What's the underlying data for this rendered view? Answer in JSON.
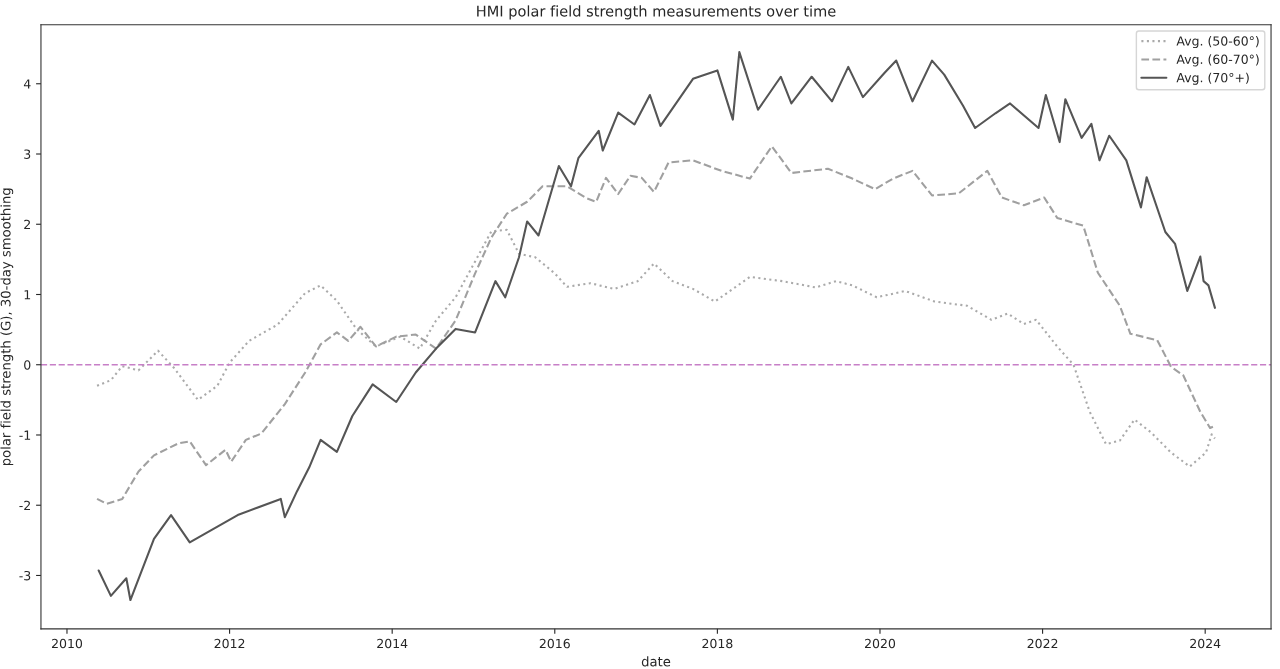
{
  "chart_data": {
    "type": "line",
    "title": "HMI polar field strength measurements over time",
    "xlabel": "date",
    "ylabel": "polar field strength (G), 30-day smoothing",
    "xlim": [
      2009.68,
      2024.81
    ],
    "xticks": [
      2010,
      2012,
      2014,
      2016,
      2018,
      2020,
      2022,
      2024
    ],
    "ylim": [
      -3.76,
      4.84
    ],
    "yticks": [
      -3,
      -2,
      -1,
      0,
      1,
      2,
      3,
      4
    ],
    "grid": false,
    "legend": "top right",
    "marker": "none",
    "ref_lines": [
      {
        "axis": "y",
        "value": 0,
        "color": "#c77fc7",
        "line_style": "dashed"
      }
    ],
    "series": [
      {
        "name": "Avg. (50-60°)",
        "color": "#aaaaaa",
        "line_style": "dotted",
        "x": [
          2010.37,
          2010.54,
          2010.68,
          2010.88,
          2011.12,
          2011.32,
          2011.61,
          2011.85,
          2012.0,
          2012.24,
          2012.59,
          2012.93,
          2013.12,
          2013.32,
          2013.56,
          2013.8,
          2014.1,
          2014.34,
          2014.54,
          2014.78,
          2015.02,
          2015.22,
          2015.41,
          2015.56,
          2015.76,
          2016.0,
          2016.15,
          2016.44,
          2016.73,
          2017.02,
          2017.22,
          2017.45,
          2017.7,
          2017.97,
          2018.4,
          2018.8,
          2019.21,
          2019.46,
          2019.66,
          2019.96,
          2020.31,
          2020.67,
          2021.07,
          2021.37,
          2021.57,
          2021.77,
          2021.92,
          2022.18,
          2022.38,
          2022.58,
          2022.78,
          2022.95,
          2023.13,
          2023.33,
          2023.58,
          2023.81,
          2024.01,
          2024.08,
          2024.12
        ],
        "values": [
          -0.3,
          -0.22,
          -0.02,
          -0.08,
          0.2,
          -0.05,
          -0.5,
          -0.3,
          0.03,
          0.34,
          0.57,
          1.02,
          1.13,
          0.91,
          0.51,
          0.26,
          0.4,
          0.23,
          0.63,
          0.96,
          1.47,
          1.9,
          1.92,
          1.58,
          1.53,
          1.3,
          1.11,
          1.16,
          1.08,
          1.19,
          1.44,
          1.19,
          1.08,
          0.9,
          1.25,
          1.19,
          1.1,
          1.19,
          1.13,
          0.96,
          1.05,
          0.9,
          0.84,
          0.64,
          0.73,
          0.58,
          0.64,
          0.26,
          0.0,
          -0.67,
          -1.13,
          -1.08,
          -0.78,
          -0.96,
          -1.25,
          -1.45,
          -1.25,
          -0.99,
          -1.05
        ]
      },
      {
        "name": "Avg. (60-70°)",
        "color": "#a0a0a0",
        "line_style": "dashed",
        "x": [
          2010.37,
          2010.49,
          2010.68,
          2010.88,
          2011.07,
          2011.37,
          2011.51,
          2011.71,
          2011.95,
          2012.02,
          2012.2,
          2012.39,
          2012.68,
          2012.93,
          2013.12,
          2013.32,
          2013.46,
          2013.61,
          2013.8,
          2014.05,
          2014.29,
          2014.54,
          2014.78,
          2015.02,
          2015.22,
          2015.41,
          2015.66,
          2015.85,
          2016.15,
          2016.39,
          2016.51,
          2016.63,
          2016.78,
          2016.93,
          2017.07,
          2017.22,
          2017.4,
          2017.7,
          2018.05,
          2018.4,
          2018.67,
          2018.91,
          2019.36,
          2019.66,
          2019.94,
          2020.16,
          2020.4,
          2020.64,
          2020.97,
          2021.32,
          2021.5,
          2021.77,
          2022.02,
          2022.18,
          2022.5,
          2022.68,
          2022.95,
          2023.08,
          2023.41,
          2023.58,
          2023.73,
          2023.94,
          2024.06,
          2024.12
        ],
        "values": [
          -1.91,
          -1.98,
          -1.91,
          -1.52,
          -1.29,
          -1.12,
          -1.09,
          -1.43,
          -1.21,
          -1.38,
          -1.07,
          -0.98,
          -0.56,
          -0.11,
          0.29,
          0.46,
          0.34,
          0.54,
          0.26,
          0.4,
          0.43,
          0.23,
          0.63,
          1.3,
          1.81,
          2.15,
          2.32,
          2.54,
          2.54,
          2.37,
          2.32,
          2.66,
          2.43,
          2.69,
          2.66,
          2.46,
          2.88,
          2.91,
          2.76,
          2.65,
          3.11,
          2.73,
          2.79,
          2.65,
          2.5,
          2.65,
          2.76,
          2.41,
          2.44,
          2.76,
          2.38,
          2.27,
          2.38,
          2.09,
          1.98,
          1.31,
          0.84,
          0.44,
          0.35,
          -0.03,
          -0.15,
          -0.67,
          -0.9,
          -0.87
        ]
      },
      {
        "name": "Avg. (70°+)",
        "color": "#555555",
        "line_style": "solid",
        "x": [
          2010.39,
          2010.54,
          2010.73,
          2010.78,
          2011.07,
          2011.28,
          2011.51,
          2012.1,
          2012.63,
          2012.68,
          2012.83,
          2012.98,
          2013.12,
          2013.32,
          2013.51,
          2013.76,
          2014.05,
          2014.29,
          2014.54,
          2014.78,
          2015.02,
          2015.27,
          2015.39,
          2015.56,
          2015.66,
          2015.8,
          2016.05,
          2016.2,
          2016.29,
          2016.54,
          2016.59,
          2016.78,
          2016.98,
          2017.17,
          2017.3,
          2017.7,
          2018.0,
          2018.19,
          2018.27,
          2018.5,
          2018.78,
          2018.91,
          2019.16,
          2019.41,
          2019.61,
          2019.79,
          2020.06,
          2020.2,
          2020.4,
          2020.64,
          2020.79,
          2021.02,
          2021.17,
          2021.42,
          2021.6,
          2021.95,
          2022.04,
          2022.21,
          2022.28,
          2022.48,
          2022.6,
          2022.7,
          2022.82,
          2023.03,
          2023.21,
          2023.28,
          2023.51,
          2023.63,
          2023.78,
          2023.94,
          2023.98,
          2024.04,
          2024.12
        ],
        "values": [
          -2.93,
          -3.29,
          -3.04,
          -3.35,
          -2.48,
          -2.14,
          -2.53,
          -2.14,
          -1.91,
          -2.17,
          -1.8,
          -1.46,
          -1.07,
          -1.24,
          -0.73,
          -0.28,
          -0.53,
          -0.11,
          0.23,
          0.51,
          0.46,
          1.19,
          0.96,
          1.53,
          2.04,
          1.84,
          2.83,
          2.54,
          2.94,
          3.33,
          3.05,
          3.59,
          3.42,
          3.84,
          3.4,
          4.07,
          4.19,
          3.49,
          4.45,
          3.63,
          4.1,
          3.72,
          4.1,
          3.75,
          4.24,
          3.81,
          4.16,
          4.33,
          3.75,
          4.33,
          4.13,
          3.69,
          3.37,
          3.58,
          3.72,
          3.37,
          3.84,
          3.17,
          3.78,
          3.23,
          3.43,
          2.91,
          3.26,
          2.91,
          2.24,
          2.67,
          1.89,
          1.72,
          1.05,
          1.54,
          1.19,
          1.13,
          0.81
        ]
      }
    ]
  }
}
